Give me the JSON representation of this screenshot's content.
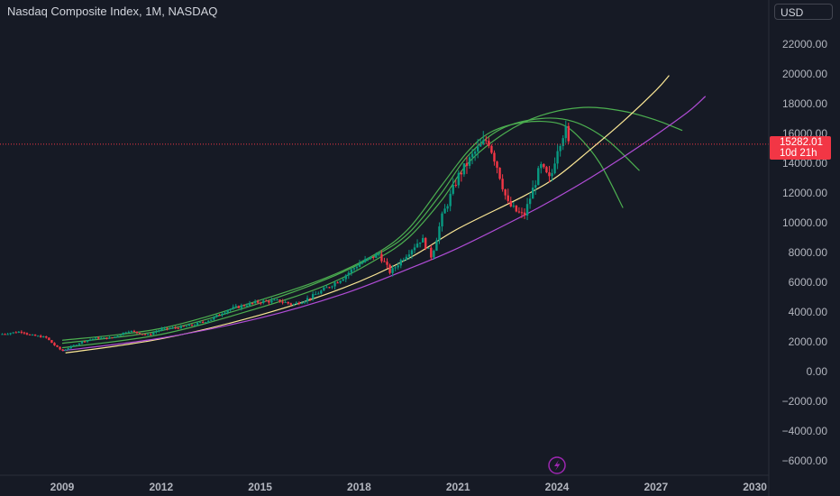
{
  "header": {
    "title": "Nasdaq Composite Index, 1M, NASDAQ",
    "currency": "USD"
  },
  "price_label": {
    "price": "15282.01",
    "countdown": "10d 21h"
  },
  "chart_data": {
    "type": "candlestick",
    "title": "Nasdaq Composite Index, 1M, NASDAQ",
    "xlabel": "",
    "ylabel": "",
    "x_ticks": [
      "2009",
      "2012",
      "2015",
      "2018",
      "2021",
      "2024",
      "2027",
      "2030"
    ],
    "y_ticks": [
      22000,
      20000,
      18000,
      16000,
      14000,
      12000,
      10000,
      8000,
      6000,
      4000,
      2000,
      0,
      -2000,
      -4000,
      -6000
    ],
    "y_tick_labels": [
      "22000.00",
      "20000.00",
      "18000.00",
      "16000.00",
      "14000.00",
      "12000.00",
      "10000.00",
      "8000.00",
      "6000.00",
      "4000.00",
      "2000.00",
      "0.00",
      "−2000.00",
      "−4000.00",
      "−6000.00"
    ],
    "xlim": [
      2007.1,
      2031.0
    ],
    "ylim": [
      -7000,
      24000
    ],
    "last_price": 15282.01,
    "grid": false,
    "price_path": [
      [
        2007.1,
        2500
      ],
      [
        2007.8,
        2700
      ],
      [
        2008.0,
        2450
      ],
      [
        2008.5,
        2300
      ],
      [
        2008.8,
        1700
      ],
      [
        2009.0,
        1380
      ],
      [
        2009.2,
        1600
      ],
      [
        2009.6,
        2000
      ],
      [
        2010.0,
        2250
      ],
      [
        2010.5,
        2250
      ],
      [
        2011.0,
        2750
      ],
      [
        2011.6,
        2450
      ],
      [
        2012.0,
        2850
      ],
      [
        2012.5,
        2950
      ],
      [
        2013.0,
        3150
      ],
      [
        2013.5,
        3500
      ],
      [
        2014.0,
        4150
      ],
      [
        2014.5,
        4450
      ],
      [
        2015.0,
        4700
      ],
      [
        2015.6,
        4750
      ],
      [
        2016.0,
        4500
      ],
      [
        2016.5,
        4950
      ],
      [
        2017.0,
        5600
      ],
      [
        2017.5,
        6300
      ],
      [
        2018.0,
        7250
      ],
      [
        2018.6,
        7900
      ],
      [
        2018.95,
        6650
      ],
      [
        2019.4,
        7800
      ],
      [
        2019.9,
        8950
      ],
      [
        2020.2,
        7700
      ],
      [
        2020.5,
        10300
      ],
      [
        2021.0,
        13100
      ],
      [
        2021.5,
        14700
      ],
      [
        2021.9,
        15650
      ],
      [
        2022.2,
        13700
      ],
      [
        2022.5,
        11300
      ],
      [
        2022.8,
        10700
      ],
      [
        2023.0,
        10450
      ],
      [
        2023.5,
        13800
      ],
      [
        2023.8,
        12800
      ],
      [
        2024.0,
        15000
      ],
      [
        2024.25,
        16350
      ],
      [
        2024.35,
        15282
      ]
    ],
    "trendlines": [
      {
        "color": "#4caf50",
        "points": [
          [
            2009.0,
            2100
          ],
          [
            2012.0,
            2900
          ],
          [
            2015.0,
            4800
          ],
          [
            2017.0,
            6300
          ],
          [
            2018.5,
            7900
          ],
          [
            2019.5,
            9600
          ],
          [
            2020.5,
            12500
          ],
          [
            2021.3,
            14800
          ],
          [
            2022.0,
            16100
          ],
          [
            2023.0,
            16750
          ],
          [
            2024.0,
            16700
          ],
          [
            2024.6,
            15900
          ],
          [
            2025.3,
            14000
          ],
          [
            2026.0,
            11000
          ]
        ]
      },
      {
        "color": "#4caf50",
        "points": [
          [
            2009.0,
            1900
          ],
          [
            2012.0,
            2750
          ],
          [
            2015.0,
            4600
          ],
          [
            2017.0,
            6200
          ],
          [
            2018.5,
            7800
          ],
          [
            2019.5,
            9300
          ],
          [
            2020.5,
            12000
          ],
          [
            2021.3,
            14500
          ],
          [
            2022.3,
            16300
          ],
          [
            2023.5,
            17000
          ],
          [
            2024.5,
            16800
          ],
          [
            2025.5,
            15600
          ],
          [
            2026.5,
            13500
          ]
        ]
      },
      {
        "color": "#4caf50",
        "points": [
          [
            2009.0,
            1600
          ],
          [
            2012.0,
            2500
          ],
          [
            2015.0,
            4300
          ],
          [
            2017.0,
            5800
          ],
          [
            2018.5,
            7500
          ],
          [
            2019.5,
            9000
          ],
          [
            2020.5,
            11500
          ],
          [
            2021.3,
            14000
          ],
          [
            2022.4,
            16000
          ],
          [
            2023.5,
            17200
          ],
          [
            2024.8,
            17750
          ],
          [
            2026.0,
            17500
          ],
          [
            2027.0,
            16900
          ],
          [
            2027.8,
            16200
          ]
        ]
      },
      {
        "color": "#fbe795",
        "points": [
          [
            2009.1,
            1250
          ],
          [
            2012.0,
            2200
          ],
          [
            2015.0,
            3800
          ],
          [
            2017.5,
            5600
          ],
          [
            2019.5,
            7600
          ],
          [
            2021.0,
            9600
          ],
          [
            2023.0,
            11800
          ],
          [
            2024.0,
            13100
          ],
          [
            2025.0,
            14900
          ],
          [
            2026.0,
            16800
          ],
          [
            2027.0,
            18900
          ],
          [
            2027.4,
            19900
          ]
        ]
      },
      {
        "color": "#b04cd6",
        "points": [
          [
            2009.0,
            1400
          ],
          [
            2012.0,
            2250
          ],
          [
            2015.0,
            3600
          ],
          [
            2017.5,
            5200
          ],
          [
            2019.5,
            6900
          ],
          [
            2021.0,
            8300
          ],
          [
            2023.0,
            10500
          ],
          [
            2024.0,
            11700
          ],
          [
            2025.0,
            13000
          ],
          [
            2026.0,
            14400
          ],
          [
            2027.0,
            15900
          ],
          [
            2028.0,
            17500
          ],
          [
            2028.5,
            18500
          ]
        ]
      }
    ]
  }
}
